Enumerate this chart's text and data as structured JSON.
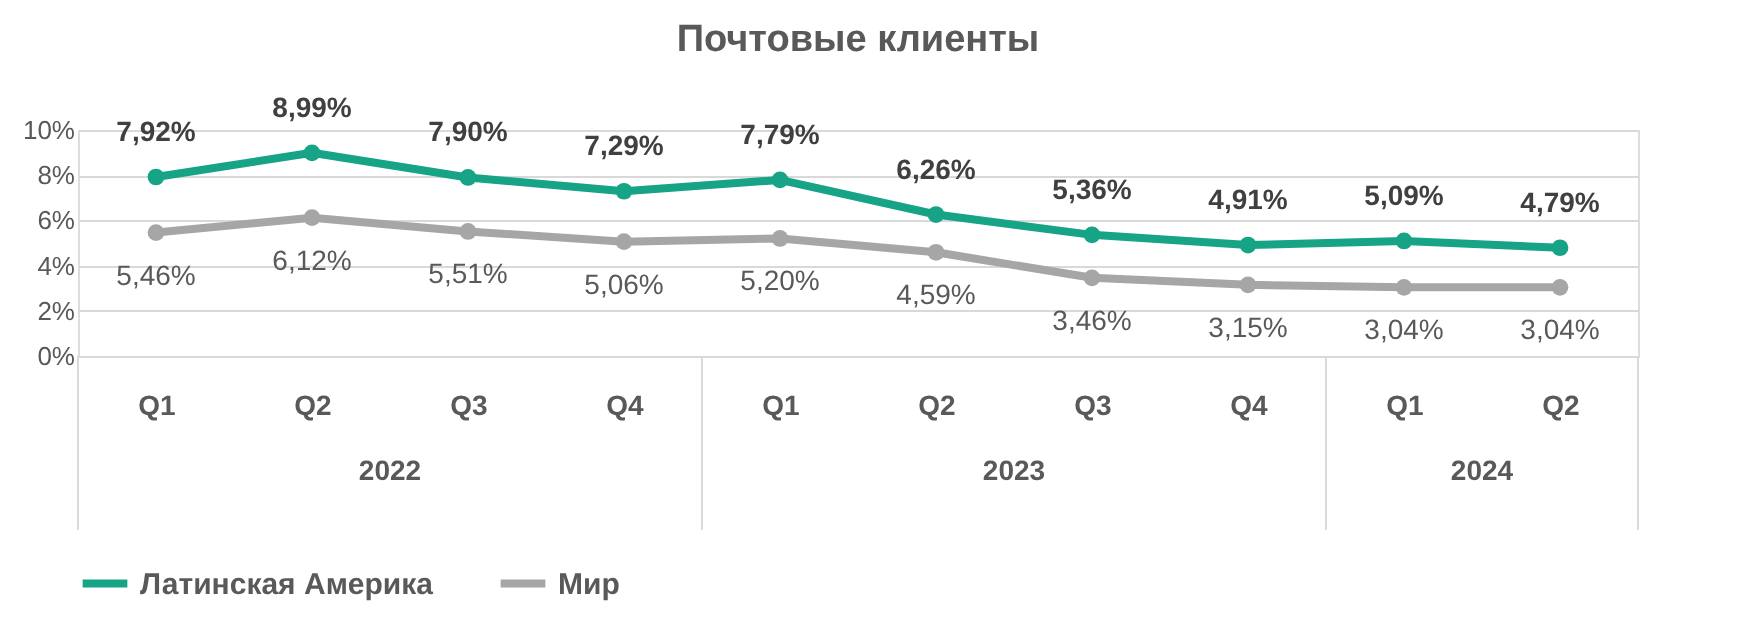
{
  "chart_data": {
    "type": "line",
    "title": "Почтовые клиенты",
    "categories": [
      "Q1",
      "Q2",
      "Q3",
      "Q4",
      "Q1",
      "Q2",
      "Q3",
      "Q4",
      "Q1",
      "Q2"
    ],
    "annotations": [
      "2022",
      "2023",
      "2024"
    ],
    "series": [
      {
        "name": "Латинская Америка",
        "color": "#16a386",
        "values": [
          7.92,
          8.99,
          7.9,
          7.29,
          7.79,
          6.26,
          5.36,
          4.91,
          5.09,
          4.79
        ],
        "value_labels": [
          "7,92%",
          "8,99%",
          "7,90%",
          "7,29%",
          "7,79%",
          "6,26%",
          "5,36%",
          "4,91%",
          "5,09%",
          "4,79%"
        ]
      },
      {
        "name": "Мир",
        "color": "#a6a6a6",
        "values": [
          5.46,
          6.12,
          5.51,
          5.06,
          5.2,
          4.59,
          3.46,
          3.15,
          3.04,
          3.04
        ],
        "value_labels": [
          "5,46%",
          "6,12%",
          "5,51%",
          "5,06%",
          "5,20%",
          "4,59%",
          "3,46%",
          "3,15%",
          "3,04%",
          "3,04%"
        ]
      }
    ],
    "ylim": [
      0,
      10
    ],
    "yticks": [
      {
        "value": 0,
        "label": "0%"
      },
      {
        "value": 2,
        "label": "2%"
      },
      {
        "value": 4,
        "label": "4%"
      },
      {
        "value": 6,
        "label": "6%"
      },
      {
        "value": 8,
        "label": "8%"
      },
      {
        "value": 10,
        "label": "10%"
      }
    ],
    "grid": "y",
    "legend": "bottom",
    "marker": "circle",
    "line_style": "solid"
  }
}
